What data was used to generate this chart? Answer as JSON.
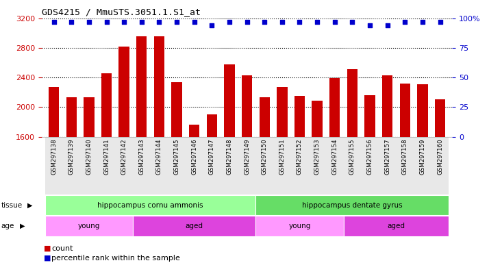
{
  "title": "GDS4215 / MmuSTS.3051.1.S1_at",
  "samples": [
    "GSM297138",
    "GSM297139",
    "GSM297140",
    "GSM297141",
    "GSM297142",
    "GSM297143",
    "GSM297144",
    "GSM297145",
    "GSM297146",
    "GSM297147",
    "GSM297148",
    "GSM297149",
    "GSM297150",
    "GSM297151",
    "GSM297152",
    "GSM297153",
    "GSM297154",
    "GSM297155",
    "GSM297156",
    "GSM297157",
    "GSM297158",
    "GSM297159",
    "GSM297160"
  ],
  "counts": [
    2270,
    2130,
    2130,
    2460,
    2820,
    2960,
    2960,
    2340,
    1760,
    1900,
    2580,
    2430,
    2130,
    2270,
    2150,
    2090,
    2390,
    2510,
    2160,
    2430,
    2320,
    2310,
    2110
  ],
  "percentile": [
    97,
    97,
    97,
    97,
    97,
    97,
    97,
    97,
    97,
    94,
    97,
    97,
    97,
    97,
    97,
    97,
    97,
    97,
    94,
    94,
    97,
    97,
    97
  ],
  "bar_color": "#cc0000",
  "dot_color": "#0000cc",
  "ylim_left": [
    1600,
    3200
  ],
  "ylim_right": [
    0,
    100
  ],
  "yticks_left": [
    1600,
    2000,
    2400,
    2800,
    3200
  ],
  "yticks_right": [
    0,
    25,
    50,
    75,
    100
  ],
  "tissue_groups": [
    {
      "label": "hippocampus cornu ammonis",
      "start": 0,
      "end": 11,
      "color": "#99ff99"
    },
    {
      "label": "hippocampus dentate gyrus",
      "start": 12,
      "end": 22,
      "color": "#66dd66"
    }
  ],
  "age_groups": [
    {
      "label": "young",
      "start": 0,
      "end": 4,
      "color": "#ff99ff"
    },
    {
      "label": "aged",
      "start": 5,
      "end": 11,
      "color": "#dd44dd"
    },
    {
      "label": "young",
      "start": 12,
      "end": 16,
      "color": "#ff99ff"
    },
    {
      "label": "aged",
      "start": 17,
      "end": 22,
      "color": "#dd44dd"
    }
  ],
  "bg_color": "#ffffff",
  "grid_color": "#000000",
  "tick_label_color_left": "#cc0000",
  "tick_label_color_right": "#0000cc",
  "legend_count_color": "#cc0000",
  "legend_dot_color": "#0000cc"
}
